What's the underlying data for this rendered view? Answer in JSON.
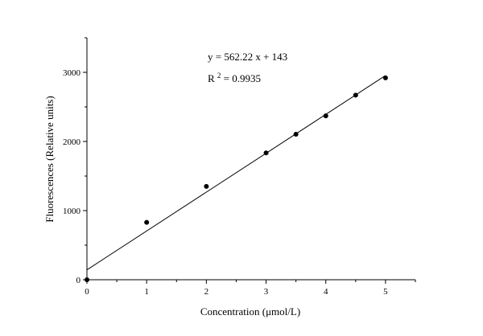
{
  "chart_data": {
    "type": "scatter",
    "xlabel": "Concentration (μmol/L)",
    "ylabel": "Fluorescences (Relative units)",
    "xlim": [
      0,
      5.5
    ],
    "ylim": [
      0,
      3500
    ],
    "x_ticks": [
      0,
      1,
      2,
      3,
      4,
      5
    ],
    "y_ticks": [
      0,
      1000,
      2000,
      3000
    ],
    "series": [
      {
        "x": [
          0,
          1,
          2,
          3,
          3.5,
          4,
          4.5,
          5
        ],
        "y": [
          0,
          830,
          1350,
          1835,
          2105,
          2370,
          2670,
          2920
        ],
        "marker_color": "#000000"
      }
    ],
    "fit": {
      "slope": 562.22,
      "intercept": 143,
      "x_range": [
        0,
        5
      ]
    },
    "annotations": {
      "equation": "y = 562.22 x + 143",
      "r2_prefix": "R",
      "r2_sup": "2",
      "r2_value": " = 0.9935"
    },
    "grid": false
  }
}
